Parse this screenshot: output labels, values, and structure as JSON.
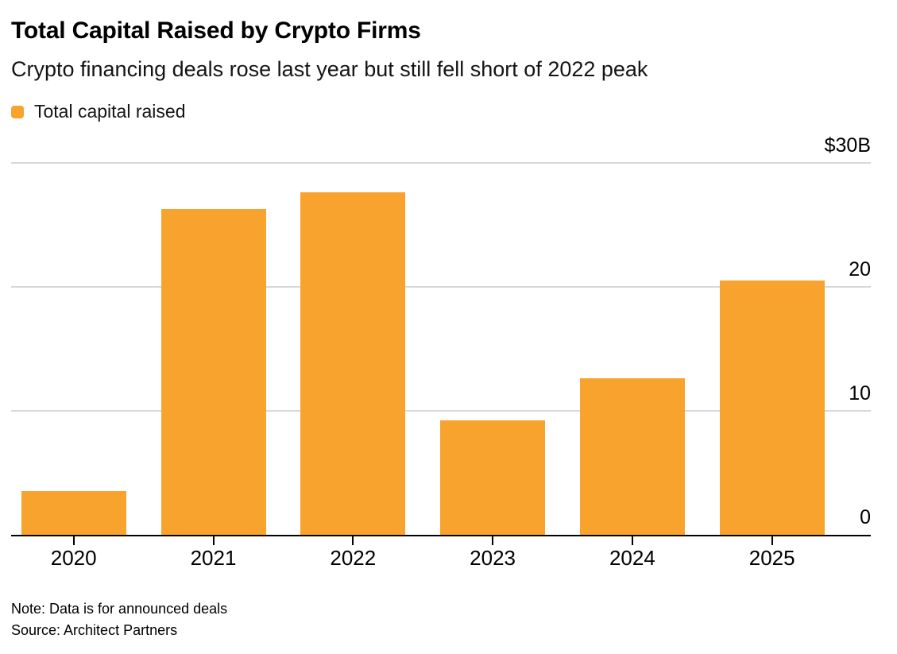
{
  "chart_data": {
    "type": "bar",
    "title": "Total Capital Raised by Crypto Firms",
    "subtitle": "Crypto financing deals rose last year but still fell short of 2022 peak",
    "legend": [
      {
        "label": "Total capital raised",
        "color": "#F9A32F"
      }
    ],
    "legend_position": "top-left",
    "categories": [
      "2020",
      "2021",
      "2022",
      "2023",
      "2024",
      "2025"
    ],
    "series": [
      {
        "name": "Total capital raised",
        "values": [
          3.5,
          26.3,
          27.6,
          9.2,
          12.6,
          20.5
        ]
      }
    ],
    "bar_color": "#F9A32F",
    "xlabel": "",
    "ylabel": "",
    "ylim": [
      0,
      30
    ],
    "yticks": [
      {
        "value": 30,
        "label": "$30B"
      },
      {
        "value": 20,
        "label": "20"
      },
      {
        "value": 10,
        "label": "10"
      },
      {
        "value": 0,
        "label": "0"
      }
    ],
    "grid": "horizontal",
    "yaxis_side": "right"
  },
  "footer": {
    "note": "Note: Data is for announced deals",
    "source": "Source: Architect Partners"
  },
  "colors": {
    "bar": "#F9A32F",
    "gridline": "#D8D8D8",
    "axis": "#000000",
    "tick": "#000000",
    "title_text": "#000000",
    "body_text": "#141414"
  }
}
